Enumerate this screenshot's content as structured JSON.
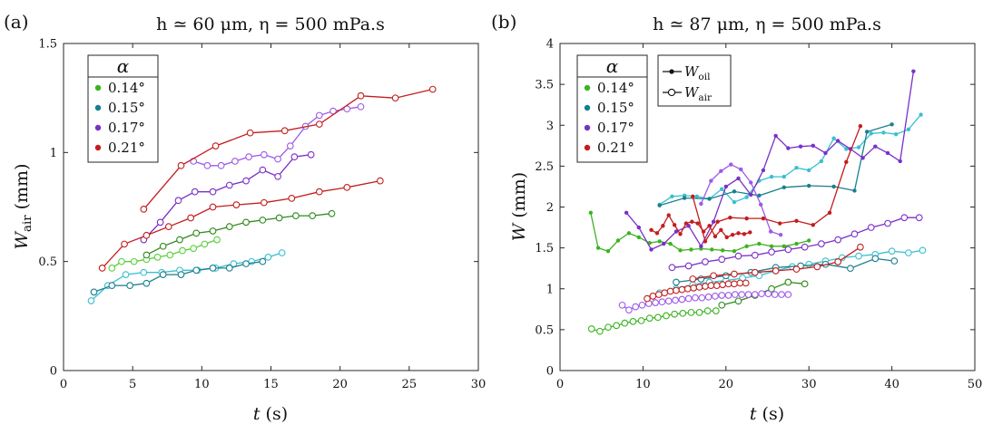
{
  "chart_data": [
    {
      "type": "line",
      "panel_label": "(a)",
      "title": "h ≃ 60 μm, η = 500 mPa.s",
      "xlabel": "t (s)",
      "ylabel": "W_air (mm)",
      "xlim": [
        0,
        30
      ],
      "ylim": [
        0,
        1.5
      ],
      "xticks": [
        0,
        5,
        10,
        15,
        20,
        25,
        30
      ],
      "yticks": [
        0,
        0.5,
        1,
        1.5
      ],
      "ytick_labels": [
        "0",
        "0.5",
        "1",
        "1.5"
      ],
      "grid": false,
      "legend": {
        "title": "α",
        "placement": "top-left",
        "entries": [
          {
            "label": "0.14°",
            "color": "#3cb321"
          },
          {
            "label": "0.15°",
            "color": "#12808f"
          },
          {
            "label": "0.17°",
            "color": "#7a2fc9"
          },
          {
            "label": "0.21°",
            "color": "#c41d1d"
          }
        ]
      },
      "series": [
        {
          "angle": "0.14°",
          "type": "air",
          "color": "#3cb321",
          "light": "#58d13a",
          "marker": "open",
          "x": [
            3.5,
            4.2,
            5.1,
            6.0,
            6.8,
            7.7,
            8.6,
            9.4,
            10.2,
            11.1
          ],
          "y": [
            0.47,
            0.5,
            0.5,
            0.51,
            0.52,
            0.53,
            0.55,
            0.56,
            0.58,
            0.6
          ]
        },
        {
          "angle": "0.14°",
          "type": "air",
          "color": "#3cb321",
          "light": "#2f8a1b",
          "marker": "open",
          "x": [
            6.0,
            7.2,
            8.4,
            9.6,
            10.8,
            12.0,
            13.2,
            14.4,
            15.6,
            16.8,
            18.0,
            19.4
          ],
          "y": [
            0.53,
            0.57,
            0.6,
            0.63,
            0.64,
            0.66,
            0.68,
            0.69,
            0.7,
            0.71,
            0.71,
            0.72
          ]
        },
        {
          "angle": "0.15°",
          "type": "air",
          "color": "#12808f",
          "light": "#3bbfd1",
          "marker": "open",
          "x": [
            2.0,
            3.2,
            4.5,
            5.8,
            7.1,
            8.4,
            9.7,
            11.0,
            12.3,
            13.6,
            14.8,
            15.8
          ],
          "y": [
            0.32,
            0.39,
            0.44,
            0.45,
            0.45,
            0.46,
            0.46,
            0.47,
            0.49,
            0.5,
            0.52,
            0.54
          ]
        },
        {
          "angle": "0.15°",
          "type": "air",
          "color": "#12808f",
          "light": "#1a7f8f",
          "marker": "open",
          "x": [
            2.2,
            3.5,
            4.8,
            6.0,
            7.2,
            8.5,
            9.6,
            10.8,
            12.0,
            13.2,
            14.4
          ],
          "y": [
            0.36,
            0.39,
            0.39,
            0.4,
            0.44,
            0.44,
            0.46,
            0.47,
            0.47,
            0.49,
            0.5
          ]
        },
        {
          "angle": "0.17°",
          "type": "air",
          "color": "#7a2fc9",
          "light": "#9d5ae8",
          "marker": "open",
          "x": [
            9.4,
            10.4,
            11.4,
            12.4,
            13.4,
            14.5,
            15.5,
            16.4,
            17.5,
            18.5,
            19.5,
            20.5,
            21.5
          ],
          "y": [
            0.96,
            0.94,
            0.94,
            0.96,
            0.98,
            0.99,
            0.97,
            1.03,
            1.12,
            1.17,
            1.19,
            1.2,
            1.21
          ]
        },
        {
          "angle": "0.17°",
          "type": "air",
          "color": "#7a2fc9",
          "light": "#7a2fc9",
          "marker": "open",
          "x": [
            5.8,
            7.0,
            8.3,
            9.5,
            10.8,
            12.0,
            13.2,
            14.4,
            15.5,
            16.7,
            17.9
          ],
          "y": [
            0.6,
            0.68,
            0.78,
            0.82,
            0.82,
            0.85,
            0.87,
            0.92,
            0.89,
            0.98,
            0.99
          ]
        },
        {
          "angle": "0.21°",
          "type": "air",
          "color": "#c41d1d",
          "light": "#c41d1d",
          "marker": "open",
          "x": [
            5.8,
            8.5,
            11.0,
            13.5,
            16.0,
            18.5,
            21.5,
            24.0,
            26.7
          ],
          "y": [
            0.74,
            0.94,
            1.03,
            1.09,
            1.1,
            1.13,
            1.26,
            1.25,
            1.29
          ]
        },
        {
          "angle": "0.21°",
          "type": "air",
          "color": "#c41d1d",
          "light": "#c41d1d",
          "marker": "open",
          "x": [
            2.8,
            4.4,
            6.0,
            7.6,
            9.2,
            10.8,
            12.5,
            14.5,
            16.5,
            18.5,
            20.5,
            22.9
          ],
          "y": [
            0.47,
            0.58,
            0.62,
            0.66,
            0.7,
            0.75,
            0.76,
            0.77,
            0.79,
            0.82,
            0.84,
            0.87
          ]
        }
      ]
    },
    {
      "type": "line",
      "panel_label": "(b)",
      "title": "h ≃ 87 μm, η = 500 mPa.s",
      "xlabel": "t (s)",
      "ylabel": "W (mm)",
      "xlim": [
        0,
        50
      ],
      "ylim": [
        0,
        4
      ],
      "xticks": [
        0,
        10,
        20,
        30,
        40,
        50
      ],
      "yticks": [
        0,
        0.5,
        1,
        1.5,
        2,
        2.5,
        3,
        3.5,
        4
      ],
      "ytick_labels": [
        "0",
        "0.5",
        "1",
        "1.5",
        "2",
        "2.5",
        "3",
        "3.5",
        "4"
      ],
      "grid": false,
      "legend": {
        "title": "α",
        "placement": "top-left",
        "entries": [
          {
            "label": "0.14°",
            "color": "#3cb321"
          },
          {
            "label": "0.15°",
            "color": "#12808f"
          },
          {
            "label": "0.17°",
            "color": "#7a2fc9"
          },
          {
            "label": "0.21°",
            "color": "#c41d1d"
          }
        ]
      },
      "type_legend": {
        "entries": [
          {
            "label": "W_oil",
            "marker": "filled"
          },
          {
            "label": "W_air",
            "marker": "open"
          }
        ]
      },
      "series": [
        {
          "angle": "0.14°",
          "type": "oil",
          "color": "#3cb321",
          "light": "#3cb321",
          "marker": "filled",
          "x": [
            3.7,
            4.6,
            5.8,
            7.0,
            8.3,
            9.5,
            10.8,
            12.0,
            13.3,
            14.5,
            15.8,
            17.0,
            18.3,
            19.6,
            21.0,
            22.5,
            24.0,
            25.5,
            27.0,
            28.5,
            30.0
          ],
          "y": [
            1.93,
            1.5,
            1.46,
            1.59,
            1.68,
            1.63,
            1.56,
            1.58,
            1.55,
            1.47,
            1.48,
            1.49,
            1.48,
            1.47,
            1.46,
            1.52,
            1.55,
            1.52,
            1.52,
            1.55,
            1.59
          ]
        },
        {
          "angle": "0.14°",
          "type": "air",
          "color": "#3cb321",
          "light": "#3cb321",
          "marker": "open",
          "x": [
            3.8,
            4.8,
            5.8,
            6.8,
            7.8,
            8.8,
            9.8,
            10.8,
            11.8,
            12.8,
            13.8,
            14.8,
            15.8,
            16.8,
            17.8,
            18.8
          ],
          "y": [
            0.51,
            0.48,
            0.53,
            0.55,
            0.58,
            0.6,
            0.61,
            0.64,
            0.65,
            0.67,
            0.69,
            0.7,
            0.71,
            0.71,
            0.73,
            0.73
          ]
        },
        {
          "angle": "0.14°",
          "type": "air",
          "color": "#3cb321",
          "light": "#2f8a1b",
          "marker": "open",
          "x": [
            19.5,
            21.5,
            23.5,
            25.5,
            27.5,
            29.5
          ],
          "y": [
            0.8,
            0.85,
            0.92,
            1.0,
            1.08,
            1.06
          ]
        },
        {
          "angle": "0.15°",
          "type": "oil",
          "color": "#12808f",
          "light": "#3bbfd1",
          "marker": "filled",
          "x": [
            12.0,
            13.5,
            15.0,
            16.5,
            18.0,
            19.5,
            21.0,
            22.5,
            24.0,
            25.5,
            27.0,
            28.5,
            30.0,
            31.5,
            33.0,
            34.5,
            36.0,
            37.5,
            39.0,
            40.5,
            42.0,
            43.5
          ],
          "y": [
            2.03,
            2.13,
            2.14,
            2.13,
            2.1,
            2.22,
            2.06,
            2.12,
            2.32,
            2.37,
            2.37,
            2.48,
            2.45,
            2.56,
            2.84,
            2.71,
            2.73,
            2.9,
            2.91,
            2.89,
            2.95,
            3.13
          ]
        },
        {
          "angle": "0.15°",
          "type": "oil",
          "color": "#12808f",
          "light": "#1a7f8f",
          "marker": "filled",
          "x": [
            12.0,
            15.0,
            18.0,
            21.0,
            24.0,
            27.0,
            30.0,
            33.0,
            35.5,
            37.0,
            40.0
          ],
          "y": [
            2.02,
            2.11,
            2.1,
            2.19,
            2.14,
            2.24,
            2.26,
            2.25,
            2.2,
            2.92,
            3.01
          ]
        },
        {
          "angle": "0.15°",
          "type": "air",
          "color": "#12808f",
          "light": "#3bbfd1",
          "marker": "open",
          "x": [
            12.0,
            14.0,
            16.0,
            18.0,
            20.0,
            22.0,
            24.0,
            26.0,
            28.0,
            30.0,
            32.0,
            34.0,
            36.0,
            38.0,
            40.0,
            42.0,
            43.7
          ],
          "y": [
            0.95,
            1.0,
            1.05,
            1.08,
            1.1,
            1.13,
            1.16,
            1.22,
            1.27,
            1.3,
            1.34,
            1.38,
            1.4,
            1.42,
            1.46,
            1.44,
            1.47
          ]
        },
        {
          "angle": "0.15°",
          "type": "air",
          "color": "#12808f",
          "light": "#1a7f8f",
          "marker": "open",
          "x": [
            14.0,
            17.0,
            20.0,
            23.0,
            26.0,
            29.0,
            32.0,
            35.0,
            38.0,
            40.3
          ],
          "y": [
            1.08,
            1.12,
            1.16,
            1.2,
            1.26,
            1.28,
            1.3,
            1.25,
            1.37,
            1.34
          ]
        },
        {
          "angle": "0.17°",
          "type": "oil",
          "color": "#7a2fc9",
          "light": "#7a2fc9",
          "marker": "filled",
          "x": [
            8.0,
            9.5,
            11.0,
            12.5,
            14.0,
            15.5,
            17.0,
            18.5,
            20.0,
            21.5,
            23.0,
            24.5,
            26.0,
            27.5,
            29.0,
            30.5,
            32.0,
            33.5,
            35.0,
            36.5,
            38.0,
            39.5,
            41.0,
            42.6
          ],
          "y": [
            1.93,
            1.75,
            1.48,
            1.55,
            1.7,
            1.77,
            1.52,
            1.82,
            2.25,
            2.35,
            2.15,
            2.45,
            2.87,
            2.72,
            2.74,
            2.75,
            2.66,
            2.81,
            2.71,
            2.6,
            2.74,
            2.66,
            2.56,
            3.66
          ]
        },
        {
          "angle": "0.17°",
          "type": "oil",
          "color": "#7a2fc9",
          "light": "#9d5ae8",
          "marker": "filled",
          "x": [
            17.0,
            18.2,
            19.4,
            20.6,
            21.8,
            23.0,
            24.2,
            25.4,
            26.6
          ],
          "y": [
            2.04,
            2.32,
            2.44,
            2.52,
            2.46,
            2.3,
            2.03,
            1.7,
            1.66
          ]
        },
        {
          "angle": "0.17°",
          "type": "air",
          "color": "#7a2fc9",
          "light": "#7a2fc9",
          "marker": "open",
          "x": [
            13.5,
            15.5,
            17.5,
            19.5,
            21.5,
            23.5,
            25.5,
            27.5,
            29.5,
            31.5,
            33.5,
            35.5,
            37.5,
            39.5,
            41.5,
            43.3
          ],
          "y": [
            1.26,
            1.28,
            1.33,
            1.36,
            1.4,
            1.41,
            1.45,
            1.48,
            1.51,
            1.55,
            1.6,
            1.67,
            1.75,
            1.8,
            1.87,
            1.87
          ]
        },
        {
          "angle": "0.17°",
          "type": "air",
          "color": "#7a2fc9",
          "light": "#9d5ae8",
          "marker": "open",
          "x": [
            7.5,
            8.3,
            9.1,
            9.9,
            10.7,
            11.5,
            12.3,
            13.1,
            13.9,
            14.7,
            15.5,
            16.3,
            17.1,
            17.9,
            18.7,
            19.5,
            20.3,
            21.1,
            21.9,
            22.7,
            23.5,
            24.3,
            25.1,
            25.9,
            26.7,
            27.5
          ],
          "y": [
            0.8,
            0.74,
            0.78,
            0.8,
            0.82,
            0.83,
            0.84,
            0.85,
            0.86,
            0.87,
            0.88,
            0.89,
            0.89,
            0.9,
            0.91,
            0.92,
            0.92,
            0.93,
            0.93,
            0.93,
            0.93,
            0.94,
            0.94,
            0.93,
            0.93,
            0.93
          ]
        },
        {
          "angle": "0.21°",
          "type": "oil",
          "color": "#c41d1d",
          "light": "#c41d1d",
          "marker": "filled",
          "x": [
            11.0,
            11.7,
            12.4,
            13.1,
            13.8,
            14.5,
            15.2,
            15.9,
            16.6,
            17.3,
            18.0,
            18.7,
            19.4,
            20.1,
            20.8,
            21.5,
            22.2,
            22.9
          ],
          "y": [
            1.72,
            1.68,
            1.77,
            1.9,
            1.78,
            1.67,
            1.8,
            1.82,
            1.8,
            1.7,
            1.77,
            1.64,
            1.72,
            1.63,
            1.66,
            1.68,
            1.67,
            1.69
          ]
        },
        {
          "angle": "0.21°",
          "type": "oil",
          "color": "#c41d1d",
          "light": "#c41d1d",
          "marker": "filled",
          "x": [
            16.0,
            17.5,
            19.0,
            20.5,
            22.5,
            24.5,
            26.5,
            28.5,
            30.5,
            32.5,
            34.5,
            36.2
          ],
          "y": [
            2.13,
            1.58,
            1.82,
            1.87,
            1.86,
            1.86,
            1.8,
            1.83,
            1.78,
            1.93,
            2.55,
            2.99
          ]
        },
        {
          "angle": "0.21°",
          "type": "air",
          "color": "#c41d1d",
          "light": "#c41d1d",
          "marker": "open",
          "x": [
            10.5,
            11.2,
            11.9,
            12.6,
            13.3,
            14.0,
            14.7,
            15.4,
            16.1,
            16.8,
            17.5,
            18.2,
            18.9,
            19.6,
            20.3,
            21.0,
            21.7,
            22.4
          ],
          "y": [
            0.88,
            0.91,
            0.93,
            0.95,
            0.97,
            0.98,
            0.99,
            1.0,
            1.01,
            1.02,
            1.03,
            1.04,
            1.04,
            1.05,
            1.06,
            1.06,
            1.07,
            1.07
          ]
        },
        {
          "angle": "0.21°",
          "type": "air",
          "color": "#c41d1d",
          "light": "#c41d1d",
          "marker": "open",
          "x": [
            16.0,
            18.5,
            21.0,
            23.5,
            26.0,
            28.5,
            31.0,
            33.5,
            36.2
          ],
          "y": [
            1.12,
            1.16,
            1.18,
            1.2,
            1.22,
            1.24,
            1.27,
            1.33,
            1.51
          ]
        }
      ]
    }
  ]
}
